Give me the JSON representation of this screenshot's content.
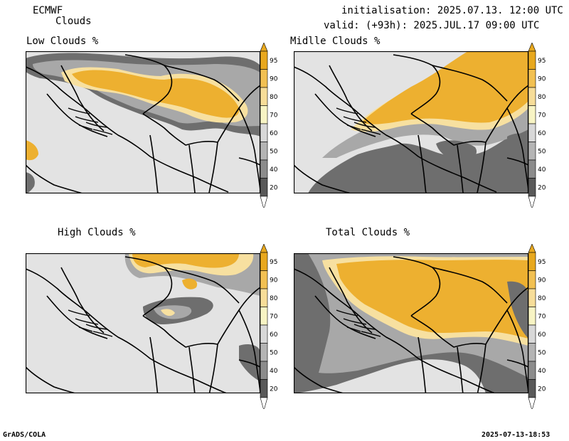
{
  "header": {
    "model": "ECMWF",
    "product": "Clouds",
    "init": "initialisation: 2025.07.13. 12:00 UTC",
    "valid": "valid: (+93h): 2025.JUL.17 09:00 UTC"
  },
  "panels": {
    "low": {
      "title": "Low Clouds %"
    },
    "middle": {
      "title": "Midlle Clouds %"
    },
    "high": {
      "title": "High Clouds %"
    },
    "total": {
      "title": "Total Clouds %"
    }
  },
  "colorbar": {
    "labels": [
      "95",
      "90",
      "80",
      "70",
      "60",
      "50",
      "40",
      "20"
    ],
    "colors": [
      "#e8a81e",
      "#f2c052",
      "#f7dd99",
      "#f8f4c4",
      "#d8d8d8",
      "#b4b4b4",
      "#8c8c8c",
      "#595959"
    ],
    "end_colors": {
      "top": "#e8a81e",
      "bottom": "#ffffff"
    }
  },
  "map_colors": {
    "land": "#e3e3e3",
    "cloud_high": "#edb030",
    "cloud_mid": "#f7e0a0",
    "cloud_grey": "#a8a8a8",
    "cloud_dark": "#6e6e6e"
  },
  "footer": {
    "left": "GrADS/COLA",
    "right": "2025-07-13-18:53"
  }
}
